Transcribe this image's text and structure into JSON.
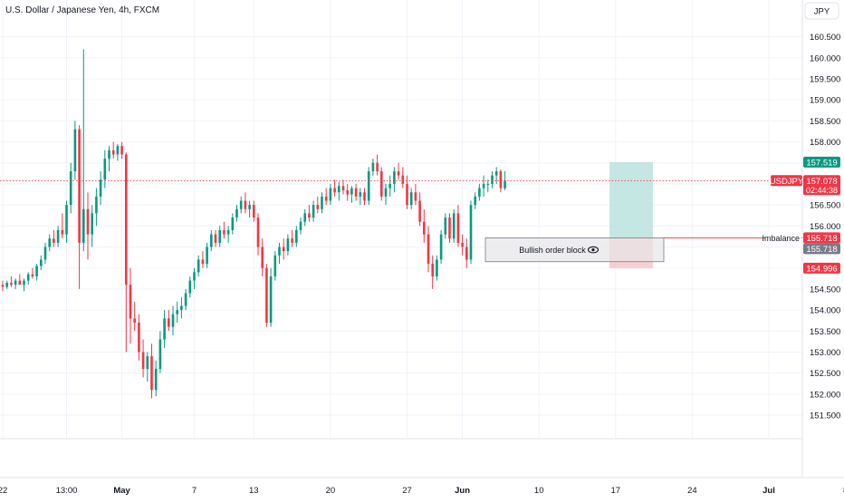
{
  "header": {
    "title": "U.S. Dollar / Japanese Yen, 4h, FXCM"
  },
  "currency_button": {
    "label": "JPY"
  },
  "chart_data": {
    "type": "candlestick",
    "symbol": "USDJPY",
    "title": "U.S. Dollar / Japanese Yen, 4h, FXCM",
    "y_ticks": [
      "160.500",
      "160.000",
      "159.500",
      "159.000",
      "158.500",
      "158.000",
      "157.500",
      "157.000",
      "156.500",
      "156.000",
      "155.500",
      "155.000",
      "154.500",
      "154.000",
      "153.500",
      "153.000",
      "152.500",
      "152.000",
      "151.500"
    ],
    "y_tick_values": [
      160.5,
      160.0,
      159.5,
      159.0,
      158.5,
      158.0,
      157.5,
      157.0,
      156.5,
      156.0,
      155.5,
      155.0,
      154.5,
      154.0,
      153.5,
      153.0,
      152.5,
      152.0,
      151.5
    ],
    "ylim": [
      151.2,
      160.9
    ],
    "x_ticks": [
      {
        "label": "22",
        "bold": false
      },
      {
        "label": "13:00",
        "bold": false
      },
      {
        "label": "May",
        "bold": true
      },
      {
        "label": "7",
        "bold": false
      },
      {
        "label": "13",
        "bold": false
      },
      {
        "label": "20",
        "bold": false
      },
      {
        "label": "27",
        "bold": false
      },
      {
        "label": "Jun",
        "bold": true
      },
      {
        "label": "10",
        "bold": false
      },
      {
        "label": "17",
        "bold": false
      },
      {
        "label": "24",
        "bold": false
      },
      {
        "label": "Jul",
        "bold": true
      },
      {
        "label": "8",
        "bold": false
      }
    ],
    "x_tick_index": [
      0,
      15,
      28,
      45,
      59,
      77,
      95,
      108,
      126,
      144,
      162,
      180,
      198
    ],
    "candles": [
      [
        154.6,
        154.7,
        154.45,
        154.55
      ],
      [
        154.55,
        154.7,
        154.5,
        154.65
      ],
      [
        154.65,
        154.8,
        154.55,
        154.6
      ],
      [
        154.6,
        154.75,
        154.5,
        154.7
      ],
      [
        154.7,
        154.85,
        154.6,
        154.6
      ],
      [
        154.6,
        154.75,
        154.45,
        154.7
      ],
      [
        154.7,
        154.9,
        154.6,
        154.85
      ],
      [
        154.85,
        155.0,
        154.75,
        154.8
      ],
      [
        154.8,
        155.1,
        154.7,
        155.05
      ],
      [
        155.05,
        155.3,
        154.95,
        155.2
      ],
      [
        155.2,
        155.6,
        155.1,
        155.5
      ],
      [
        155.5,
        155.8,
        155.4,
        155.7
      ],
      [
        155.7,
        155.9,
        155.5,
        155.6
      ],
      [
        155.6,
        156.0,
        155.5,
        155.9
      ],
      [
        155.9,
        156.3,
        155.7,
        155.8
      ],
      [
        155.8,
        156.6,
        155.6,
        156.5
      ],
      [
        156.5,
        157.5,
        156.3,
        157.3
      ],
      [
        157.3,
        158.5,
        157.1,
        158.3
      ],
      [
        158.3,
        158.4,
        154.5,
        155.6
      ],
      [
        155.6,
        160.2,
        155.4,
        156.4
      ],
      [
        156.4,
        156.8,
        155.2,
        155.8
      ],
      [
        155.8,
        156.5,
        155.5,
        156.3
      ],
      [
        156.3,
        156.9,
        156.0,
        156.7
      ],
      [
        156.7,
        157.3,
        156.5,
        157.1
      ],
      [
        157.1,
        157.8,
        156.9,
        157.6
      ],
      [
        157.6,
        157.9,
        157.3,
        157.8
      ],
      [
        157.8,
        158.0,
        157.6,
        157.7
      ],
      [
        157.7,
        157.95,
        157.55,
        157.9
      ],
      [
        157.9,
        158.0,
        157.6,
        157.7
      ],
      [
        157.7,
        157.75,
        153.0,
        154.6
      ],
      [
        154.6,
        155.0,
        153.2,
        153.8
      ],
      [
        153.8,
        154.2,
        153.5,
        153.7
      ],
      [
        153.7,
        153.9,
        152.8,
        153.0
      ],
      [
        153.0,
        153.3,
        152.4,
        152.6
      ],
      [
        152.6,
        153.0,
        152.3,
        152.9
      ],
      [
        152.9,
        153.2,
        151.9,
        152.1
      ],
      [
        152.1,
        152.8,
        151.95,
        152.6
      ],
      [
        152.6,
        153.5,
        152.5,
        153.3
      ],
      [
        153.3,
        154.0,
        153.1,
        153.8
      ],
      [
        153.8,
        154.0,
        153.5,
        153.6
      ],
      [
        153.6,
        154.1,
        153.4,
        153.9
      ],
      [
        153.9,
        154.2,
        153.7,
        154.0
      ],
      [
        154.0,
        154.3,
        153.8,
        154.1
      ],
      [
        154.1,
        154.5,
        154.0,
        154.4
      ],
      [
        154.4,
        154.8,
        154.3,
        154.7
      ],
      [
        154.7,
        155.0,
        154.5,
        154.9
      ],
      [
        154.9,
        155.3,
        154.8,
        155.2
      ],
      [
        155.2,
        155.4,
        155.0,
        155.1
      ],
      [
        155.1,
        155.6,
        155.0,
        155.5
      ],
      [
        155.5,
        155.9,
        155.4,
        155.8
      ],
      [
        155.8,
        155.9,
        155.5,
        155.6
      ],
      [
        155.6,
        156.0,
        155.5,
        155.9
      ],
      [
        155.9,
        156.1,
        155.7,
        155.8
      ],
      [
        155.8,
        156.0,
        155.6,
        155.9
      ],
      [
        155.9,
        156.3,
        155.8,
        156.2
      ],
      [
        156.2,
        156.5,
        156.1,
        156.4
      ],
      [
        156.4,
        156.7,
        156.3,
        156.6
      ],
      [
        156.6,
        156.8,
        156.3,
        156.4
      ],
      [
        156.4,
        156.6,
        156.2,
        156.5
      ],
      [
        156.5,
        156.6,
        156.1,
        156.2
      ],
      [
        156.2,
        156.3,
        155.3,
        155.5
      ],
      [
        155.5,
        155.7,
        154.8,
        155.0
      ],
      [
        155.0,
        155.1,
        153.6,
        153.7
      ],
      [
        153.7,
        155.0,
        153.6,
        154.8
      ],
      [
        154.8,
        155.4,
        154.7,
        155.3
      ],
      [
        155.3,
        155.6,
        155.1,
        155.5
      ],
      [
        155.5,
        155.7,
        155.2,
        155.4
      ],
      [
        155.4,
        155.8,
        155.3,
        155.7
      ],
      [
        155.7,
        155.9,
        155.5,
        155.6
      ],
      [
        155.6,
        156.0,
        155.5,
        155.9
      ],
      [
        155.9,
        156.2,
        155.8,
        156.1
      ],
      [
        156.1,
        156.4,
        156.0,
        156.3
      ],
      [
        156.3,
        156.5,
        156.1,
        156.2
      ],
      [
        156.2,
        156.6,
        156.1,
        156.5
      ],
      [
        156.5,
        156.7,
        156.3,
        156.4
      ],
      [
        156.4,
        156.8,
        156.3,
        156.7
      ],
      [
        156.7,
        156.9,
        156.5,
        156.6
      ],
      [
        156.6,
        157.0,
        156.5,
        156.9
      ],
      [
        156.9,
        157.1,
        156.7,
        156.8
      ],
      [
        156.8,
        157.05,
        156.6,
        156.95
      ],
      [
        156.95,
        157.1,
        156.75,
        156.85
      ],
      [
        156.85,
        157.0,
        156.6,
        156.75
      ],
      [
        156.75,
        156.95,
        156.55,
        156.9
      ],
      [
        156.9,
        157.0,
        156.6,
        156.7
      ],
      [
        156.7,
        156.9,
        156.5,
        156.8
      ],
      [
        156.8,
        156.9,
        156.5,
        156.6
      ],
      [
        156.6,
        157.4,
        156.5,
        157.3
      ],
      [
        157.3,
        157.6,
        157.2,
        157.5
      ],
      [
        157.5,
        157.7,
        157.2,
        157.3
      ],
      [
        157.3,
        157.4,
        156.6,
        156.7
      ],
      [
        156.7,
        157.0,
        156.5,
        156.9
      ],
      [
        156.9,
        157.2,
        156.7,
        157.0
      ],
      [
        157.0,
        157.4,
        156.8,
        157.3
      ],
      [
        157.3,
        157.5,
        157.1,
        157.2
      ],
      [
        157.2,
        157.4,
        156.9,
        157.0
      ],
      [
        157.0,
        157.2,
        156.4,
        156.5
      ],
      [
        156.5,
        156.9,
        156.4,
        156.8
      ],
      [
        156.8,
        157.0,
        156.5,
        156.6
      ],
      [
        156.6,
        156.8,
        156.0,
        156.1
      ],
      [
        156.1,
        156.4,
        155.6,
        155.8
      ],
      [
        155.8,
        156.0,
        154.9,
        155.1
      ],
      [
        155.1,
        155.3,
        154.5,
        154.8
      ],
      [
        154.8,
        155.3,
        154.7,
        155.2
      ],
      [
        155.2,
        155.9,
        155.1,
        155.8
      ],
      [
        155.8,
        156.3,
        155.7,
        156.2
      ],
      [
        156.2,
        156.3,
        155.6,
        155.7
      ],
      [
        155.7,
        156.4,
        155.6,
        156.3
      ],
      [
        156.3,
        156.5,
        155.5,
        155.6
      ],
      [
        155.6,
        155.8,
        155.3,
        155.5
      ],
      [
        155.5,
        155.7,
        155.0,
        155.2
      ],
      [
        155.2,
        156.6,
        155.1,
        156.5
      ],
      [
        156.5,
        156.8,
        156.4,
        156.7
      ],
      [
        156.7,
        157.0,
        156.6,
        156.9
      ],
      [
        156.9,
        157.2,
        156.7,
        157.0
      ],
      [
        157.0,
        157.1,
        156.8,
        157.0
      ],
      [
        157.0,
        157.3,
        156.9,
        157.2
      ],
      [
        157.2,
        157.4,
        157.0,
        157.3
      ],
      [
        157.3,
        157.35,
        156.8,
        156.9
      ],
      [
        156.9,
        157.3,
        156.85,
        157.08
      ]
    ],
    "current_price": "157.078",
    "current_price_value": 157.078,
    "countdown": "02:44:38",
    "imbalance_label": "Imbalance",
    "imbalance_price": "155.718",
    "imbalance_value": 155.718,
    "order_block_label": "Bullish order block",
    "order_block_top": 155.718,
    "order_block_bottom": 155.15,
    "target_price": "157.519",
    "target_value": 157.519,
    "stop_price": "154.996",
    "stop_value": 154.996,
    "entry_value": 155.718,
    "colors": {
      "up": "#089981",
      "down": "#f23645",
      "target_zone": "#b2dfdb",
      "stop_zone": "#f6c8cb",
      "grid": "#f0f3fa"
    }
  }
}
